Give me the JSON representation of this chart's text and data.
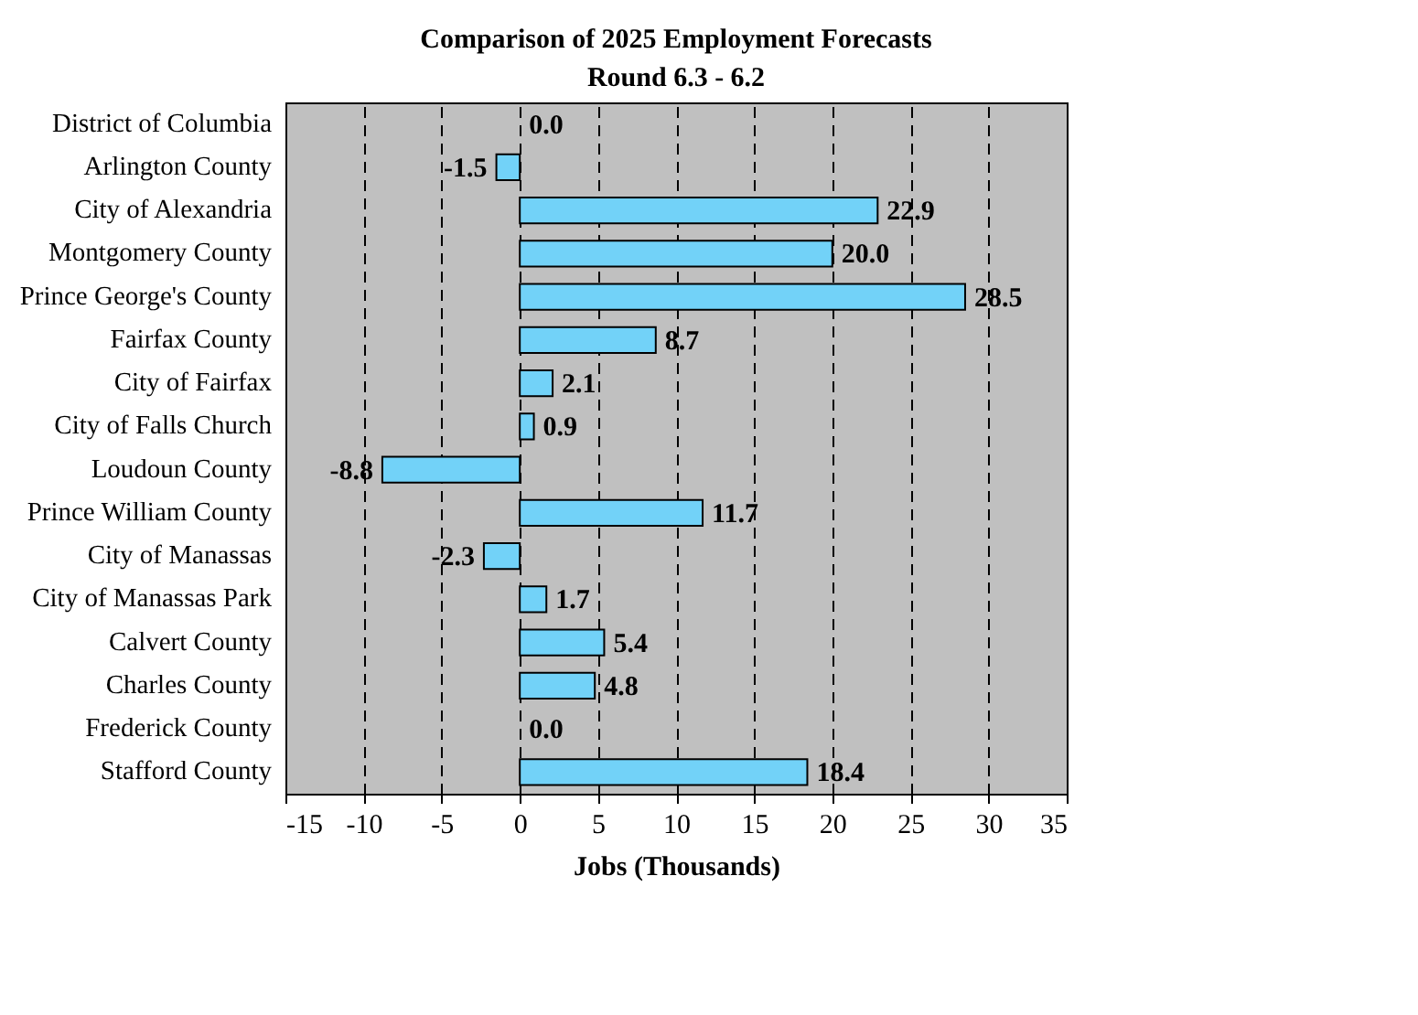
{
  "chart_data": {
    "type": "bar",
    "orientation": "horizontal",
    "title": "Comparison of 2025 Employment Forecasts",
    "subtitle": "Round 6.3 - 6.2",
    "xlabel": "Jobs (Thousands)",
    "categories": [
      "District of Columbia",
      "Arlington County",
      "City of Alexandria",
      "Montgomery County",
      "Prince George's County",
      "Fairfax County",
      "City of Fairfax",
      "City of Falls Church",
      "Loudoun County",
      "Prince William County",
      "City of Manassas",
      "City of Manassas Park",
      "Calvert County",
      "Charles County",
      "Frederick County",
      "Stafford County"
    ],
    "values": [
      0.0,
      -1.5,
      22.9,
      20.0,
      28.5,
      8.7,
      2.1,
      0.9,
      -8.8,
      11.7,
      -2.3,
      1.7,
      5.4,
      4.8,
      0.0,
      18.4
    ],
    "value_labels": [
      "0.0",
      "-1.5",
      "22.9",
      "20.0",
      "28.5",
      "8.7",
      "2.1",
      "0.9",
      "-8.8",
      "11.7",
      "-2.3",
      "1.7",
      "5.4",
      "4.8",
      "0.0",
      "18.4"
    ],
    "color": "#72d2f8",
    "xlim": [
      -15,
      35
    ],
    "xticks": [
      -15,
      -10,
      -5,
      0,
      5,
      10,
      15,
      20,
      25,
      30,
      35
    ],
    "grid": "x"
  }
}
